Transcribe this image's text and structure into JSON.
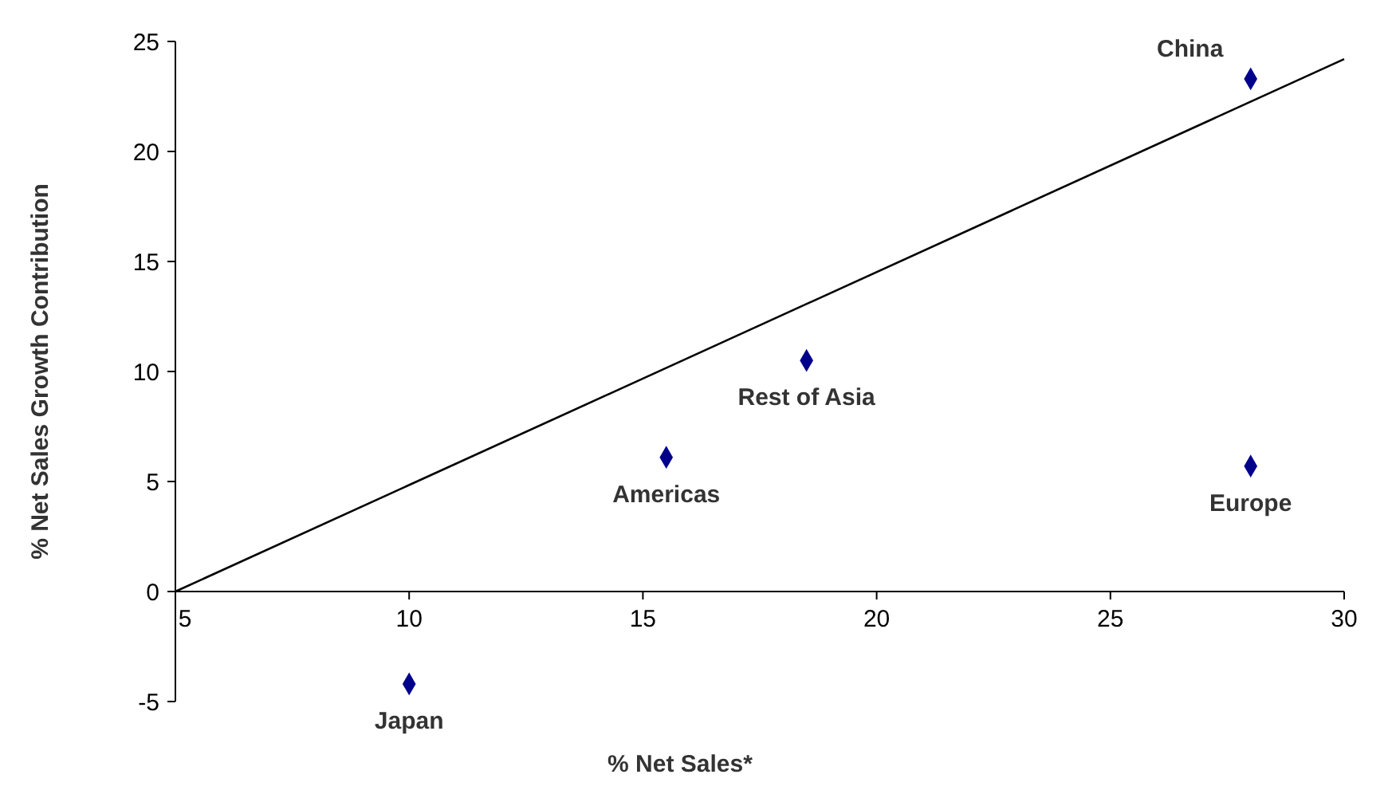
{
  "chart_data": {
    "type": "scatter",
    "xlabel": "% Net Sales*",
    "ylabel": "% Net Sales Growth Contribution",
    "xlim": [
      5,
      30
    ],
    "ylim": [
      -5,
      25
    ],
    "xticks": [
      5,
      10,
      15,
      20,
      25,
      30
    ],
    "yticks": [
      -5,
      0,
      5,
      10,
      15,
      20,
      25
    ],
    "grid": false,
    "series": [
      {
        "marker": "diamond",
        "color": "#00008b",
        "x": [
          10,
          15.5,
          18.5,
          28,
          28
        ],
        "values": [
          -4.2,
          6.1,
          10.5,
          23.3,
          5.7
        ]
      },
      {
        "type": "line",
        "color": "#000000",
        "x": [
          5,
          30
        ],
        "values": [
          0,
          24.2
        ]
      }
    ],
    "annotations": [
      {
        "text": "Japan",
        "x": 10,
        "y": -4.2
      },
      {
        "text": "Americas",
        "x": 15.5,
        "y": 6.1
      },
      {
        "text": "Rest of Asia",
        "x": 18.5,
        "y": 10.5
      },
      {
        "text": "China",
        "x": 28,
        "y": 23.3
      },
      {
        "text": "Europe",
        "x": 28,
        "y": 5.7
      }
    ]
  }
}
